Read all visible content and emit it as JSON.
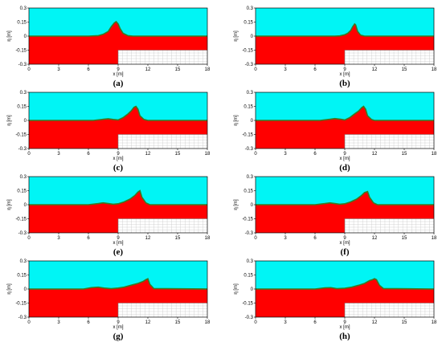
{
  "chart_data": [
    {
      "type": "area",
      "label": "(a)",
      "xlabel": "x [m]",
      "ylabel": "η [m]",
      "xlim": [
        0,
        18
      ],
      "ylim": [
        -0.3,
        0.3
      ],
      "xticks": [
        "0",
        "3",
        "6",
        "9",
        "12",
        "15",
        "18"
      ],
      "yticks": [
        "0.3",
        "0.15",
        "0",
        "-0.15",
        "-0.3"
      ],
      "step": {
        "x_from": 9,
        "top": -0.15
      },
      "surface": {
        "x": [
          0,
          6,
          7,
          7.5,
          8,
          8.3,
          8.6,
          8.8,
          9.0,
          9.2,
          9.5,
          10,
          10.5,
          11,
          18
        ],
        "y": [
          0,
          0,
          0.005,
          0.02,
          0.05,
          0.1,
          0.14,
          0.155,
          0.13,
          0.08,
          0.03,
          0.005,
          0,
          0,
          0
        ]
      }
    },
    {
      "type": "area",
      "label": "(b)",
      "xlabel": "x [m]",
      "ylabel": "η [m]",
      "xlim": [
        0,
        18
      ],
      "ylim": [
        -0.3,
        0.3
      ],
      "xticks": [
        "0",
        "3",
        "6",
        "9",
        "12",
        "15",
        "18"
      ],
      "yticks": [
        "0.3",
        "0.15",
        "0",
        "-0.15",
        "-0.3"
      ],
      "step": {
        "x_from": 9,
        "top": -0.15
      },
      "surface": {
        "x": [
          0,
          8,
          8.5,
          9,
          9.3,
          9.6,
          9.8,
          10.0,
          10.1,
          10.3,
          10.6,
          11,
          12,
          18
        ],
        "y": [
          0,
          0,
          0.003,
          0.015,
          0.03,
          0.06,
          0.1,
          0.13,
          0.12,
          0.05,
          0.01,
          0,
          0,
          0
        ]
      }
    },
    {
      "type": "area",
      "label": "(c)",
      "xlabel": "x [m]",
      "ylabel": "η [m]",
      "xlim": [
        0,
        18
      ],
      "ylim": [
        -0.3,
        0.3
      ],
      "xticks": [
        "0",
        "3",
        "6",
        "9",
        "12",
        "15",
        "18"
      ],
      "yticks": [
        "0.3",
        "0.15",
        "0",
        "-0.15",
        "-0.3"
      ],
      "step": {
        "x_from": 9,
        "top": -0.15
      },
      "surface": {
        "x": [
          0,
          6.5,
          7.5,
          8,
          8.5,
          9,
          9.5,
          10,
          10.3,
          10.6,
          10.8,
          11,
          11.2,
          11.6,
          12,
          18
        ],
        "y": [
          0,
          0,
          0.012,
          0.018,
          0.01,
          0.005,
          0.03,
          0.07,
          0.1,
          0.14,
          0.15,
          0.12,
          0.05,
          0.01,
          0,
          0
        ]
      }
    },
    {
      "type": "area",
      "label": "(d)",
      "xlabel": "x [m]",
      "ylabel": "η [m]",
      "xlim": [
        0,
        18
      ],
      "ylim": [
        -0.3,
        0.3
      ],
      "xticks": [
        "0",
        "3",
        "6",
        "9",
        "12",
        "15",
        "18"
      ],
      "yticks": [
        "0.3",
        "0.15",
        "0",
        "-0.15",
        "-0.3"
      ],
      "step": {
        "x_from": 9,
        "top": -0.15
      },
      "surface": {
        "x": [
          0,
          6.5,
          7.5,
          8,
          8.6,
          9,
          9.5,
          10,
          10.4,
          10.7,
          10.9,
          11.1,
          11.3,
          11.7,
          12,
          18
        ],
        "y": [
          0,
          0,
          0.012,
          0.02,
          0.012,
          0.005,
          0.03,
          0.07,
          0.1,
          0.135,
          0.15,
          0.12,
          0.05,
          0.01,
          0,
          0
        ]
      }
    },
    {
      "type": "area",
      "label": "(e)",
      "xlabel": "x [m]",
      "ylabel": "η [m]",
      "xlim": [
        0,
        18
      ],
      "ylim": [
        -0.3,
        0.3
      ],
      "xticks": [
        "0",
        "3",
        "6",
        "9",
        "12",
        "15",
        "18"
      ],
      "yticks": [
        "0.3",
        "0.15",
        "0",
        "-0.15",
        "-0.3"
      ],
      "step": {
        "x_from": 9,
        "top": -0.15
      },
      "surface": {
        "x": [
          0,
          6,
          7,
          7.5,
          8,
          8.5,
          9,
          9.6,
          10.2,
          10.7,
          11,
          11.2,
          11.4,
          11.8,
          12.2,
          18
        ],
        "y": [
          0,
          0,
          0.012,
          0.02,
          0.012,
          0.005,
          0.01,
          0.03,
          0.06,
          0.1,
          0.135,
          0.15,
          0.08,
          0.02,
          0,
          0
        ]
      }
    },
    {
      "type": "area",
      "label": "(f)",
      "xlabel": "x [m]",
      "ylabel": "η [m]",
      "xlim": [
        0,
        18
      ],
      "ylim": [
        -0.3,
        0.3
      ],
      "xticks": [
        "0",
        "3",
        "6",
        "9",
        "12",
        "15",
        "18"
      ],
      "yticks": [
        "0.3",
        "0.15",
        "0",
        "-0.15",
        "-0.3"
      ],
      "step": {
        "x_from": 9,
        "top": -0.15
      },
      "surface": {
        "x": [
          0,
          6,
          7,
          7.5,
          8,
          8.5,
          9,
          9.6,
          10.2,
          10.7,
          11,
          11.3,
          11.5,
          11.9,
          12.3,
          18
        ],
        "y": [
          0,
          0,
          0.012,
          0.02,
          0.012,
          0.005,
          0.01,
          0.03,
          0.06,
          0.1,
          0.13,
          0.14,
          0.08,
          0.02,
          0,
          0
        ]
      }
    },
    {
      "type": "area",
      "label": "(g)",
      "xlabel": "x [m]",
      "ylabel": "η [m]",
      "xlim": [
        0,
        18
      ],
      "ylim": [
        -0.3,
        0.3
      ],
      "xticks": [
        "0",
        "3",
        "6",
        "9",
        "12",
        "15",
        "18"
      ],
      "yticks": [
        "0.3",
        "0.15",
        "0",
        "-0.15",
        "-0.3"
      ],
      "step": {
        "x_from": 9,
        "top": -0.15
      },
      "surface": {
        "x": [
          0,
          5.5,
          6.3,
          7,
          7.6,
          8.3,
          9,
          9.6,
          10.3,
          11,
          11.5,
          11.8,
          12.0,
          12.2,
          12.6,
          18
        ],
        "y": [
          0,
          0,
          0.015,
          0.02,
          0.01,
          0.004,
          0.01,
          0.02,
          0.04,
          0.06,
          0.08,
          0.1,
          0.11,
          0.05,
          0.005,
          0
        ]
      }
    },
    {
      "type": "area",
      "label": "(h)",
      "xlabel": "x [m]",
      "ylabel": "η [m]",
      "xlim": [
        0,
        18
      ],
      "ylim": [
        -0.3,
        0.3
      ],
      "xticks": [
        "0",
        "3",
        "6",
        "9",
        "12",
        "15",
        "18"
      ],
      "yticks": [
        "0.3",
        "0.15",
        "0",
        "-0.15",
        "-0.3"
      ],
      "step": {
        "x_from": 9,
        "top": -0.15
      },
      "surface": {
        "x": [
          0,
          6,
          7,
          7.6,
          8.2,
          9,
          9.7,
          10.4,
          11,
          11.5,
          11.8,
          12,
          12.2,
          12.5,
          12.9,
          18
        ],
        "y": [
          0,
          0,
          0.012,
          0.015,
          0.004,
          0.008,
          0.02,
          0.04,
          0.06,
          0.09,
          0.1,
          0.11,
          0.1,
          0.04,
          0.005,
          0
        ]
      }
    }
  ],
  "colors": {
    "air": "#00f5f5",
    "water": "#ff0000",
    "interface": "#3a7a22",
    "grid": "#c8c8c8",
    "frame": "#000000"
  }
}
